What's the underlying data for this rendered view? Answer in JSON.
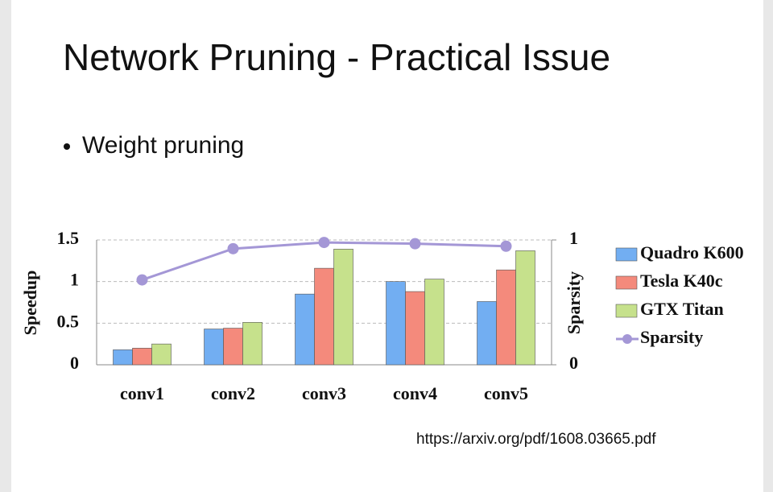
{
  "title": "Network Pruning - Practical Issue",
  "bullet": "Weight pruning",
  "url": "https://arxiv.org/pdf/1608.03665.pdf",
  "chart_data": {
    "type": "bar",
    "categories": [
      "conv1",
      "conv2",
      "conv3",
      "conv4",
      "conv5"
    ],
    "y_label": "Speedup",
    "y2_label": "Sparsity",
    "ylim": [
      0,
      1.5
    ],
    "yticks": [
      0,
      0.5,
      1,
      1.5
    ],
    "y2lim": [
      0,
      1
    ],
    "y2ticks": [
      0,
      1
    ],
    "grid": true,
    "legend": "right",
    "series": [
      {
        "name": "Quadro K600",
        "color": "#72aef2",
        "values": [
          0.18,
          0.43,
          0.85,
          1.0,
          0.76
        ]
      },
      {
        "name": "Tesla K40c",
        "color": "#f48a7c",
        "values": [
          0.2,
          0.44,
          1.16,
          0.88,
          1.14
        ]
      },
      {
        "name": "GTX Titan",
        "color": "#c6e18c",
        "values": [
          0.25,
          0.51,
          1.39,
          1.03,
          1.37
        ]
      },
      {
        "name": "Sparsity",
        "color": "#a497d6",
        "type": "line",
        "axis": "y2",
        "values": [
          0.68,
          0.93,
          0.98,
          0.97,
          0.95
        ]
      }
    ]
  }
}
